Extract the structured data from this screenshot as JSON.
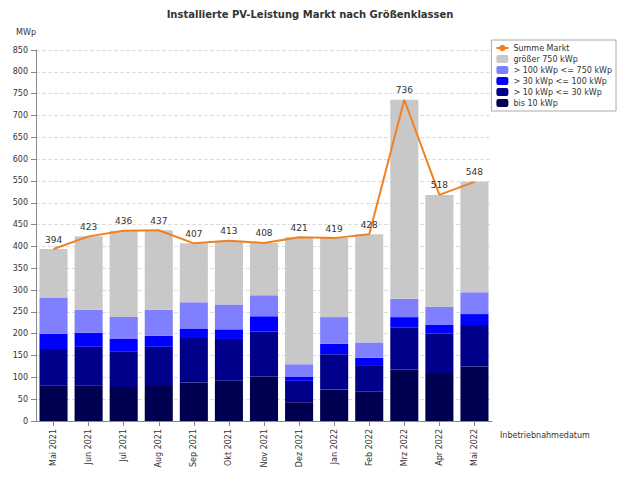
{
  "chart_data": {
    "type": "bar",
    "title": "Installierte PV-Leistung Markt nach Größenklassen",
    "y_label": "MWp",
    "x_label": "Inbetriebnahmedatum",
    "categories": [
      "Mai 2021",
      "Jun 2021",
      "Jul 2021",
      "Aug 2021",
      "Sep 2021",
      "Okt 2021",
      "Nov 2021",
      "Dez 2021",
      "Jan 2022",
      "Feb 2022",
      "Mrz 2022",
      "Apr 2022",
      "Mai 2022"
    ],
    "stacked": true,
    "grid": true,
    "legend": "top-right",
    "ylim": [
      0,
      850
    ],
    "yticks": [
      0,
      50,
      100,
      150,
      200,
      250,
      300,
      350,
      400,
      450,
      500,
      550,
      600,
      650,
      700,
      750,
      800,
      850
    ],
    "series": [
      {
        "name": "bis 10 kWp",
        "type": "bar",
        "color": "#000050",
        "values": [
          82,
          82,
          78,
          80,
          88,
          92,
          102,
          43,
          72,
          68,
          118,
          110,
          125
        ]
      },
      {
        "name": "> 10 kWp <= 30 kWp",
        "type": "bar",
        "color": "#00008b",
        "values": [
          83,
          88,
          82,
          90,
          102,
          96,
          103,
          49,
          81,
          60,
          97,
          90,
          95
        ]
      },
      {
        "name": "> 30 kWp <= 100 kWp",
        "type": "bar",
        "color": "#0000ff",
        "values": [
          35,
          32,
          28,
          25,
          22,
          22,
          35,
          10,
          24,
          17,
          23,
          20,
          25
        ]
      },
      {
        "name": "> 100 kWp <= 750 kWp",
        "type": "bar",
        "color": "#8080ff",
        "values": [
          83,
          53,
          50,
          60,
          60,
          57,
          48,
          28,
          61,
          35,
          42,
          42,
          50
        ]
      },
      {
        "name": "größer 750 kWp",
        "type": "bar",
        "color": "#c8c8c8",
        "values": [
          111,
          168,
          198,
          182,
          135,
          146,
          120,
          291,
          181,
          248,
          456,
          256,
          253
        ]
      },
      {
        "name": "Summe Markt",
        "type": "line",
        "color": "#f08020",
        "marker": "none",
        "data_labels": true,
        "values": [
          394,
          423,
          436,
          437,
          407,
          413,
          408,
          421,
          419,
          428,
          736,
          518,
          548
        ]
      }
    ]
  }
}
